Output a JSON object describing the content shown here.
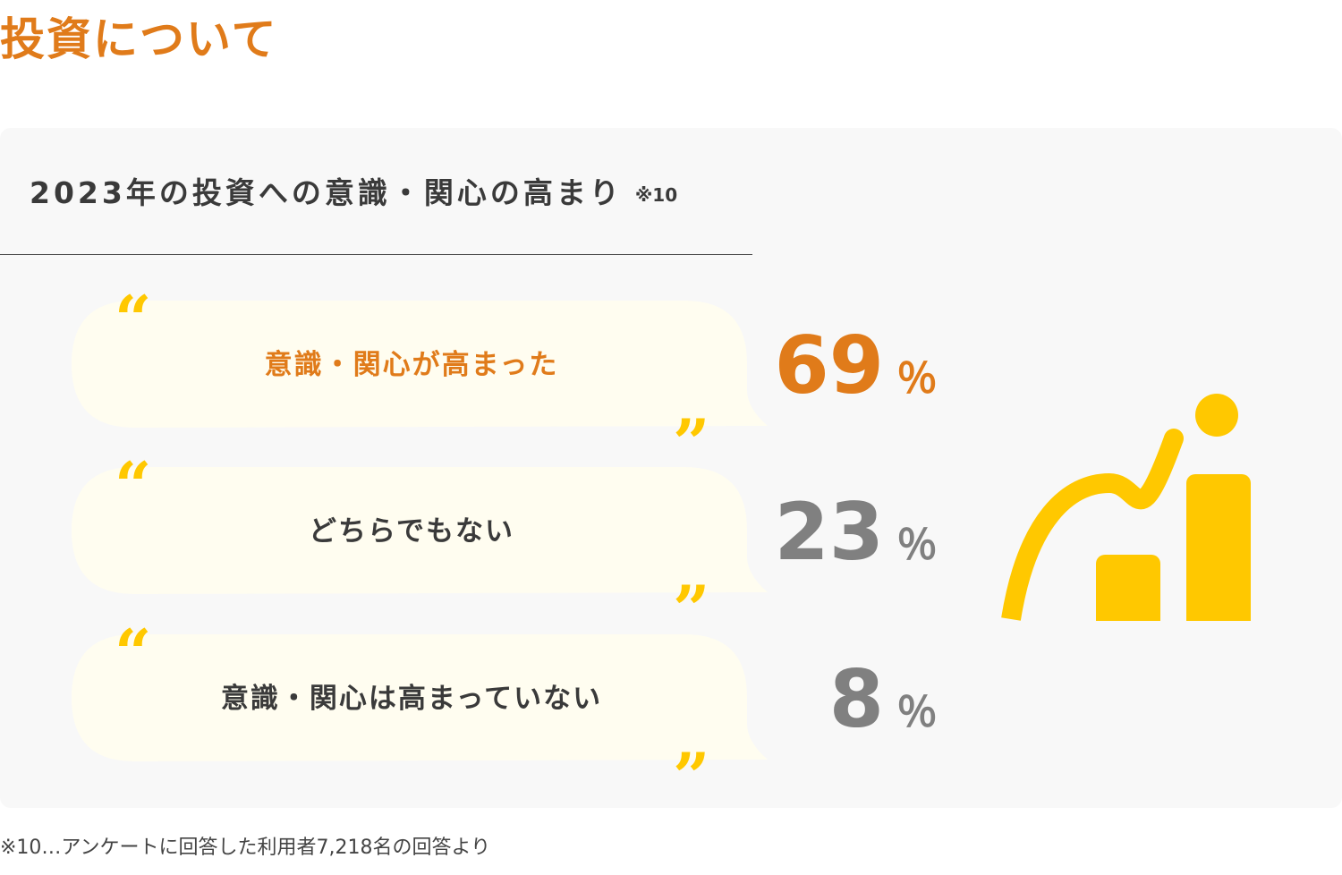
{
  "page_title": "投資について",
  "panel": {
    "title": "2023年の投資への意識・関心の高まり",
    "note": "※10"
  },
  "colors": {
    "accent": "#e07b1a",
    "gray": "#808080",
    "bubble": "#fffdf0",
    "quote": "#ffc800",
    "illustration": "#ffc800"
  },
  "chart_data": {
    "type": "table",
    "categories": [
      "意識・関心が高まった",
      "どちらでもない",
      "意識・関心は高まっていない"
    ],
    "values": [
      69,
      23,
      8
    ],
    "value_labels": [
      "69",
      "23",
      "8"
    ],
    "unit": "％"
  },
  "footnote": "※10…アンケートに回答した利用者7,218名の回答より",
  "icons": {
    "open_quote": "“",
    "close_quote": "”",
    "illustration": "growth-chart-person-icon"
  }
}
